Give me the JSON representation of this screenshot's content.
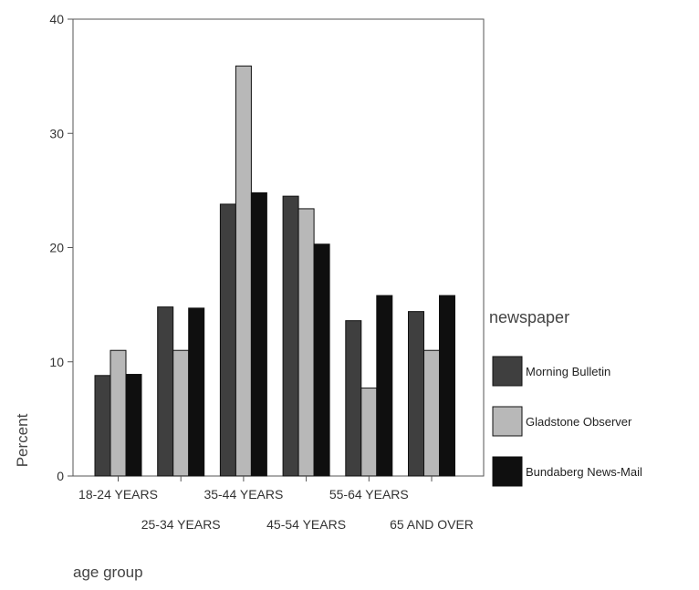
{
  "chart_data": {
    "type": "bar",
    "title": "",
    "xlabel": "age group",
    "ylabel": "Percent",
    "ylim": [
      0,
      40
    ],
    "yticks": [
      0,
      10,
      20,
      30,
      40
    ],
    "grid": false,
    "legend_title": "newspaper",
    "legend_position": "right",
    "categories": [
      "18-24 YEARS",
      "25-34 YEARS",
      "35-44 YEARS",
      "45-54 YEARS",
      "55-64 YEARS",
      "65 AND OVER"
    ],
    "series": [
      {
        "name": "Morning Bulletin",
        "color": "#3f3f3f",
        "values": [
          8.8,
          14.8,
          23.8,
          24.5,
          13.6,
          14.4
        ]
      },
      {
        "name": "Gladstone Observer",
        "color": "#b8b8b8",
        "values": [
          11.0,
          11.0,
          35.9,
          23.4,
          7.7,
          11.0
        ]
      },
      {
        "name": "Bundaberg News-Mail",
        "color": "#0f0f0f",
        "values": [
          8.9,
          14.7,
          24.8,
          20.3,
          15.8,
          15.8
        ]
      }
    ]
  }
}
